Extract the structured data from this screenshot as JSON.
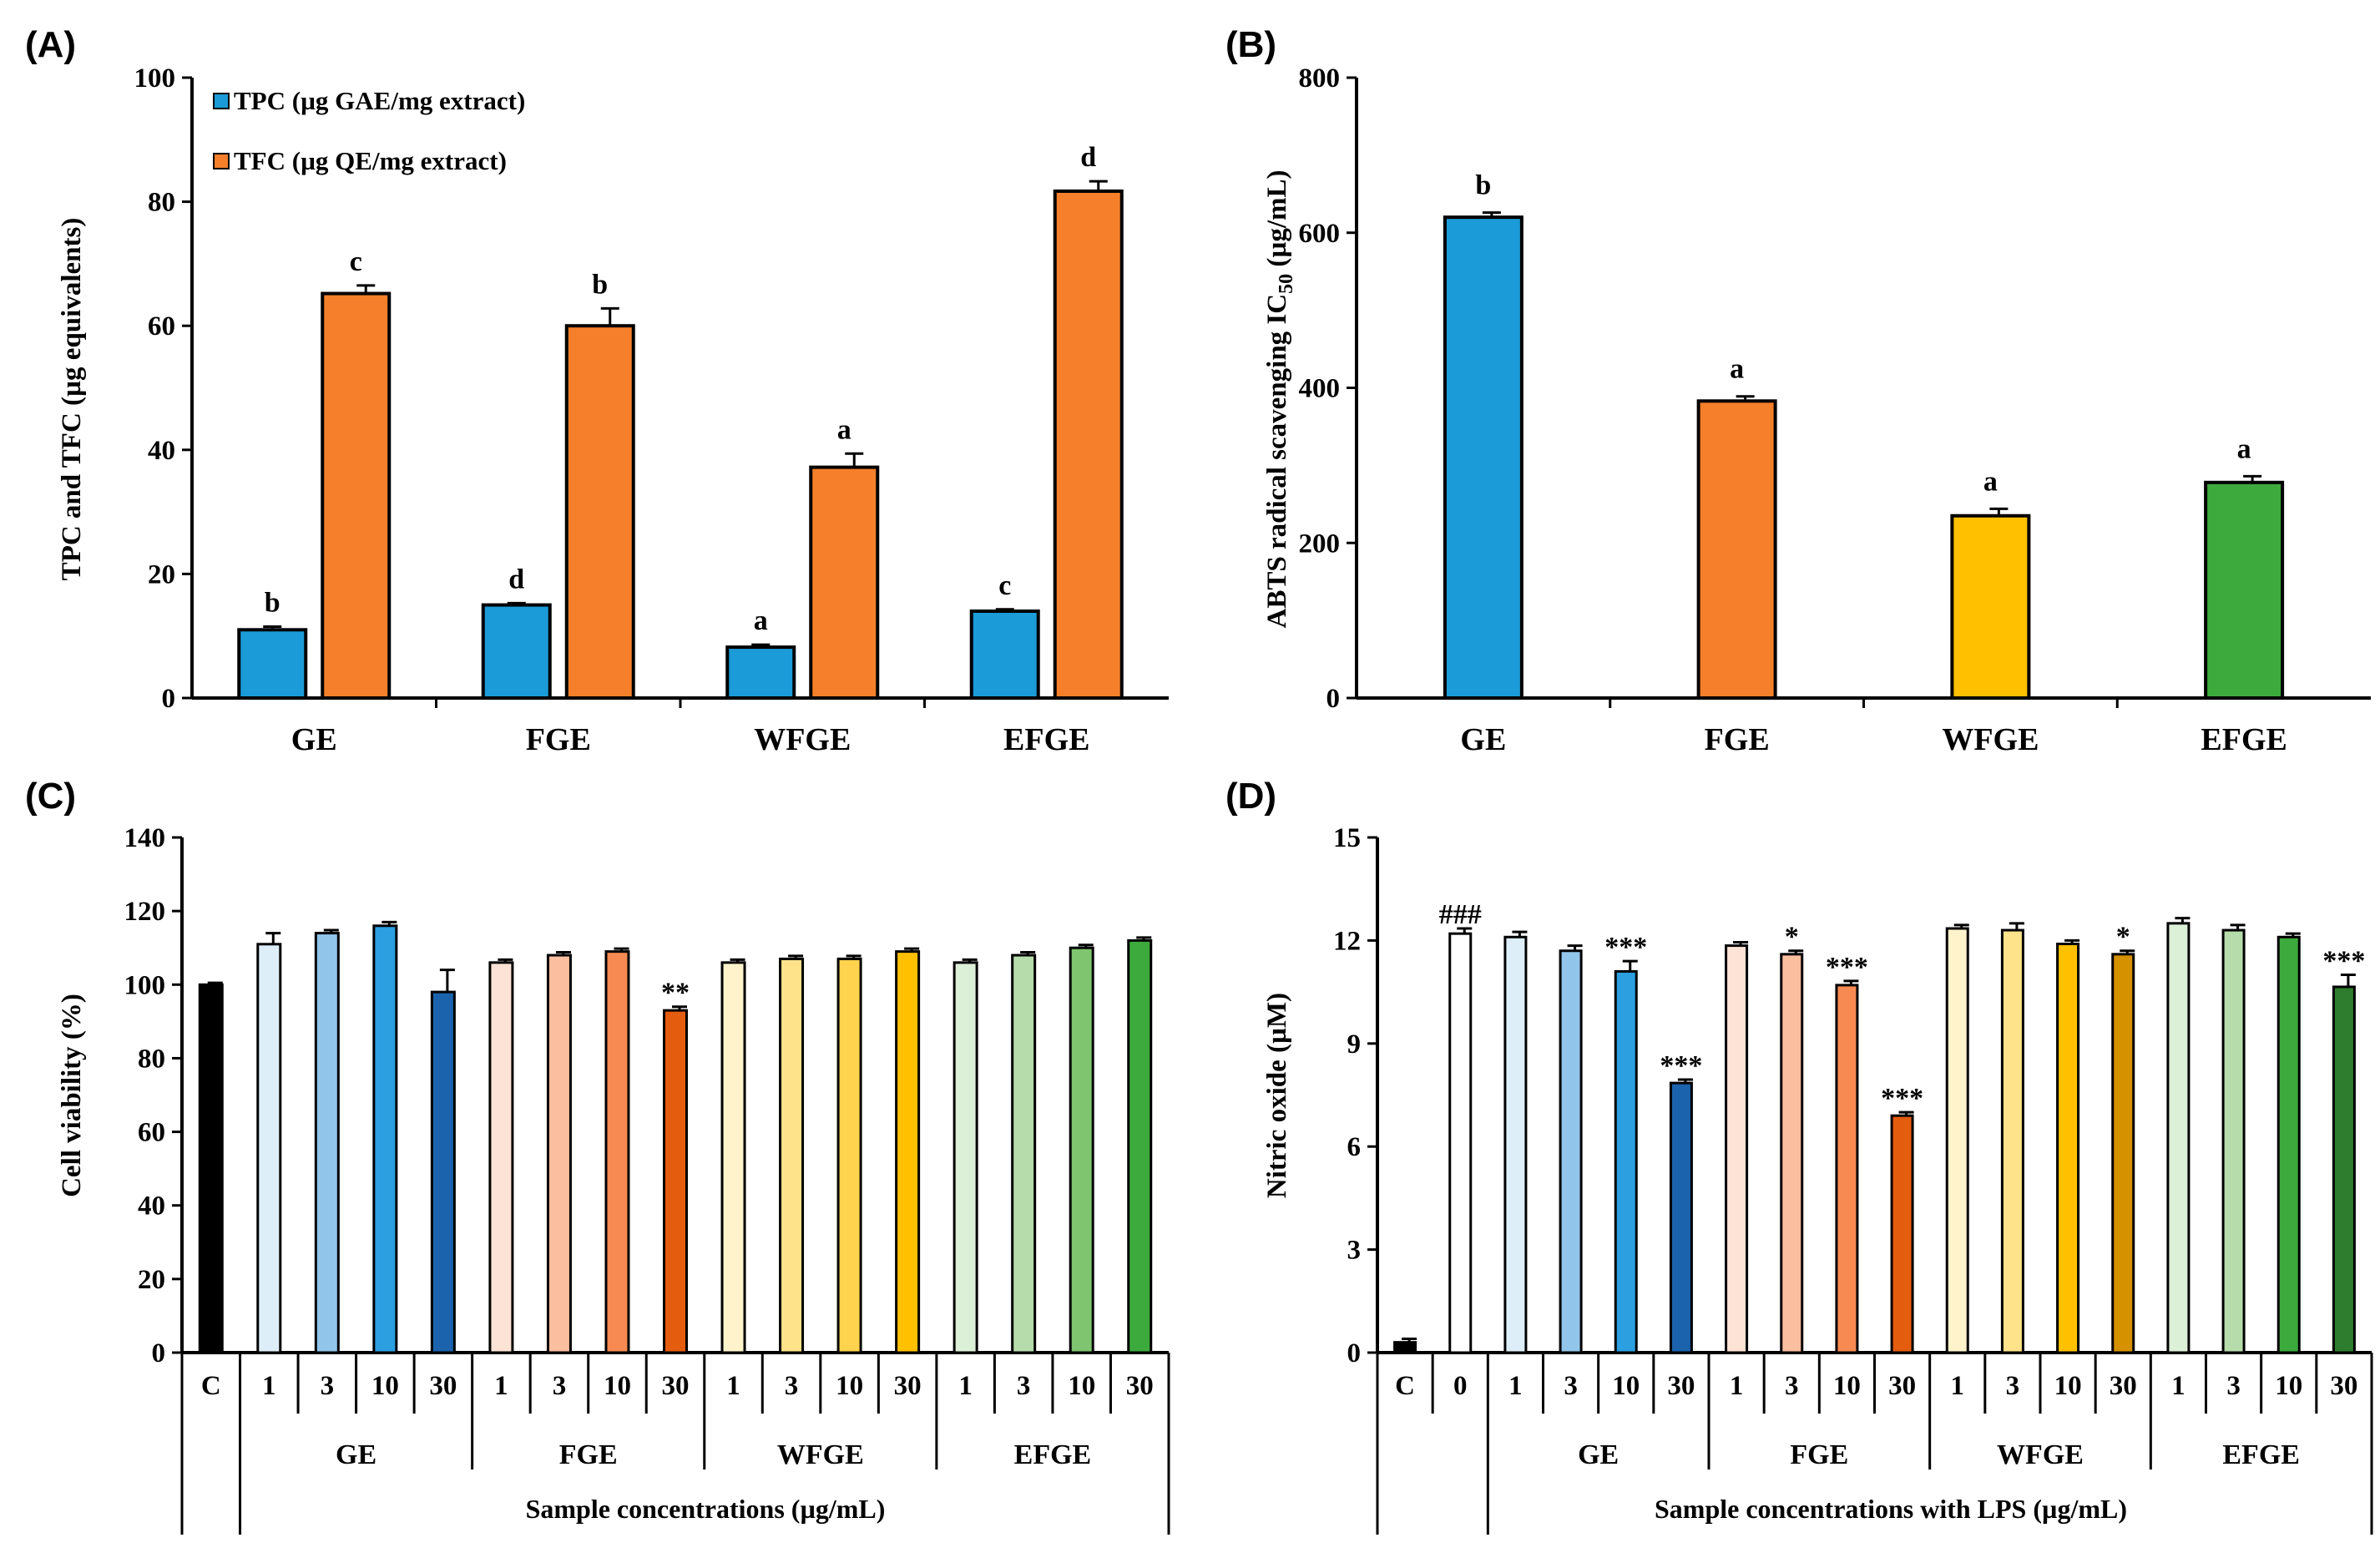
{
  "chart_data": [
    {
      "panel": "(A)",
      "type": "bar",
      "ylabel": "TPC and TFC (µg equivalents)",
      "ylim": [
        0,
        100
      ],
      "yticks": [
        0,
        20,
        40,
        60,
        80,
        100
      ],
      "categories": [
        "GE",
        "FGE",
        "WFGE",
        "EFGE"
      ],
      "legend_position": "top-left",
      "series": [
        {
          "name": "TPC (µg GAE/mg extract)",
          "color": "#1b9bd7",
          "values": [
            11,
            15,
            8.2,
            14
          ],
          "errors": [
            0.5,
            0.3,
            0.4,
            0.3
          ],
          "letters": [
            "b",
            "d",
            "a",
            "c"
          ]
        },
        {
          "name": "TFC (µg QE/mg extract)",
          "color": "#f57f2a",
          "values": [
            65.2,
            60,
            37.2,
            81.7
          ],
          "errors": [
            1.3,
            2.8,
            2.2,
            1.6
          ],
          "letters": [
            "c",
            "b",
            "a",
            "d"
          ]
        }
      ]
    },
    {
      "panel": "(B)",
      "type": "bar",
      "ylabel_main": "ABTS radical scavenging IC",
      "ylabel_sub": "50",
      "ylabel_unit": " (µg/mL)",
      "ylim": [
        0,
        800
      ],
      "yticks": [
        0,
        200,
        400,
        600,
        800
      ],
      "categories": [
        "GE",
        "FGE",
        "WFGE",
        "EFGE"
      ],
      "values": [
        620,
        383,
        235,
        278
      ],
      "errors": [
        6,
        6,
        9,
        8
      ],
      "letters": [
        "b",
        "a",
        "a",
        "a"
      ],
      "colors": [
        "#1b9bd7",
        "#f57f2a",
        "#ffc000",
        "#3daa3d"
      ]
    },
    {
      "panel": "(C)",
      "type": "bar",
      "ylabel": "Cell viability (%)",
      "ylim": [
        0,
        140
      ],
      "yticks": [
        0,
        20,
        40,
        60,
        80,
        100,
        120,
        140
      ],
      "tick_labels": [
        "C",
        "1",
        "3",
        "10",
        "30",
        "1",
        "3",
        "10",
        "30",
        "1",
        "3",
        "10",
        "30",
        "1",
        "3",
        "10",
        "30"
      ],
      "values": [
        100,
        111,
        114,
        116,
        98,
        106,
        108,
        109,
        93,
        106,
        107,
        107,
        109,
        106,
        108,
        110,
        112
      ],
      "errors": [
        0.5,
        3,
        0.8,
        1,
        6,
        0.8,
        0.8,
        0.8,
        1,
        0.8,
        0.8,
        0.8,
        0.8,
        0.8,
        0.8,
        0.8,
        0.8
      ],
      "marks": [
        "",
        "",
        "",
        "",
        "",
        "",
        "",
        "",
        "**",
        "",
        "",
        "",
        "",
        "",
        "",
        "",
        ""
      ],
      "colors": [
        "#000000",
        "#ddeef9",
        "#92c5ea",
        "#2b9fe0",
        "#1b63ac",
        "#fde3d5",
        "#fbbe9e",
        "#f68a52",
        "#e45c0e",
        "#fff3cc",
        "#ffe38a",
        "#ffd34d",
        "#ffc000",
        "#dcefd7",
        "#b5dcaa",
        "#7fc46e",
        "#3daa3d"
      ],
      "groups": [
        "GE",
        "FGE",
        "WFGE",
        "EFGE"
      ],
      "xlabel": "Sample concentrations (µg/mL)"
    },
    {
      "panel": "(D)",
      "type": "bar",
      "ylabel": "Nitric oxide (µM)",
      "ylim": [
        0,
        15
      ],
      "yticks": [
        0,
        3,
        6,
        9,
        12,
        15
      ],
      "tick_labels": [
        "C",
        "0",
        "1",
        "3",
        "10",
        "30",
        "1",
        "3",
        "10",
        "30",
        "1",
        "3",
        "10",
        "30",
        "1",
        "3",
        "10",
        "30"
      ],
      "values": [
        0.3,
        12.2,
        12.1,
        11.7,
        11.1,
        7.85,
        11.85,
        11.6,
        10.7,
        6.9,
        12.35,
        12.3,
        11.9,
        11.6,
        12.5,
        12.3,
        12.1,
        10.65
      ],
      "errors": [
        0.1,
        0.15,
        0.15,
        0.15,
        0.3,
        0.1,
        0.1,
        0.1,
        0.12,
        0.1,
        0.1,
        0.2,
        0.1,
        0.1,
        0.15,
        0.15,
        0.1,
        0.35
      ],
      "marks": [
        "",
        "###",
        "",
        "",
        "***",
        "***",
        "",
        "*",
        "***",
        "***",
        "",
        "",
        "",
        "*",
        "",
        "",
        "",
        "***"
      ],
      "colors": [
        "#000000",
        "#ffffff",
        "#ddeef9",
        "#92c5ea",
        "#2b9fe0",
        "#1b63ac",
        "#fde3d5",
        "#fbbe9e",
        "#f68a52",
        "#e45c0e",
        "#fff3cc",
        "#ffe38a",
        "#ffc000",
        "#d59100",
        "#dcefd7",
        "#b5dcaa",
        "#3daa3d",
        "#2e7d2e"
      ],
      "groups": [
        "GE",
        "FGE",
        "WFGE",
        "EFGE"
      ],
      "xlabel": "Sample concentrations with LPS (µg/mL)"
    }
  ]
}
